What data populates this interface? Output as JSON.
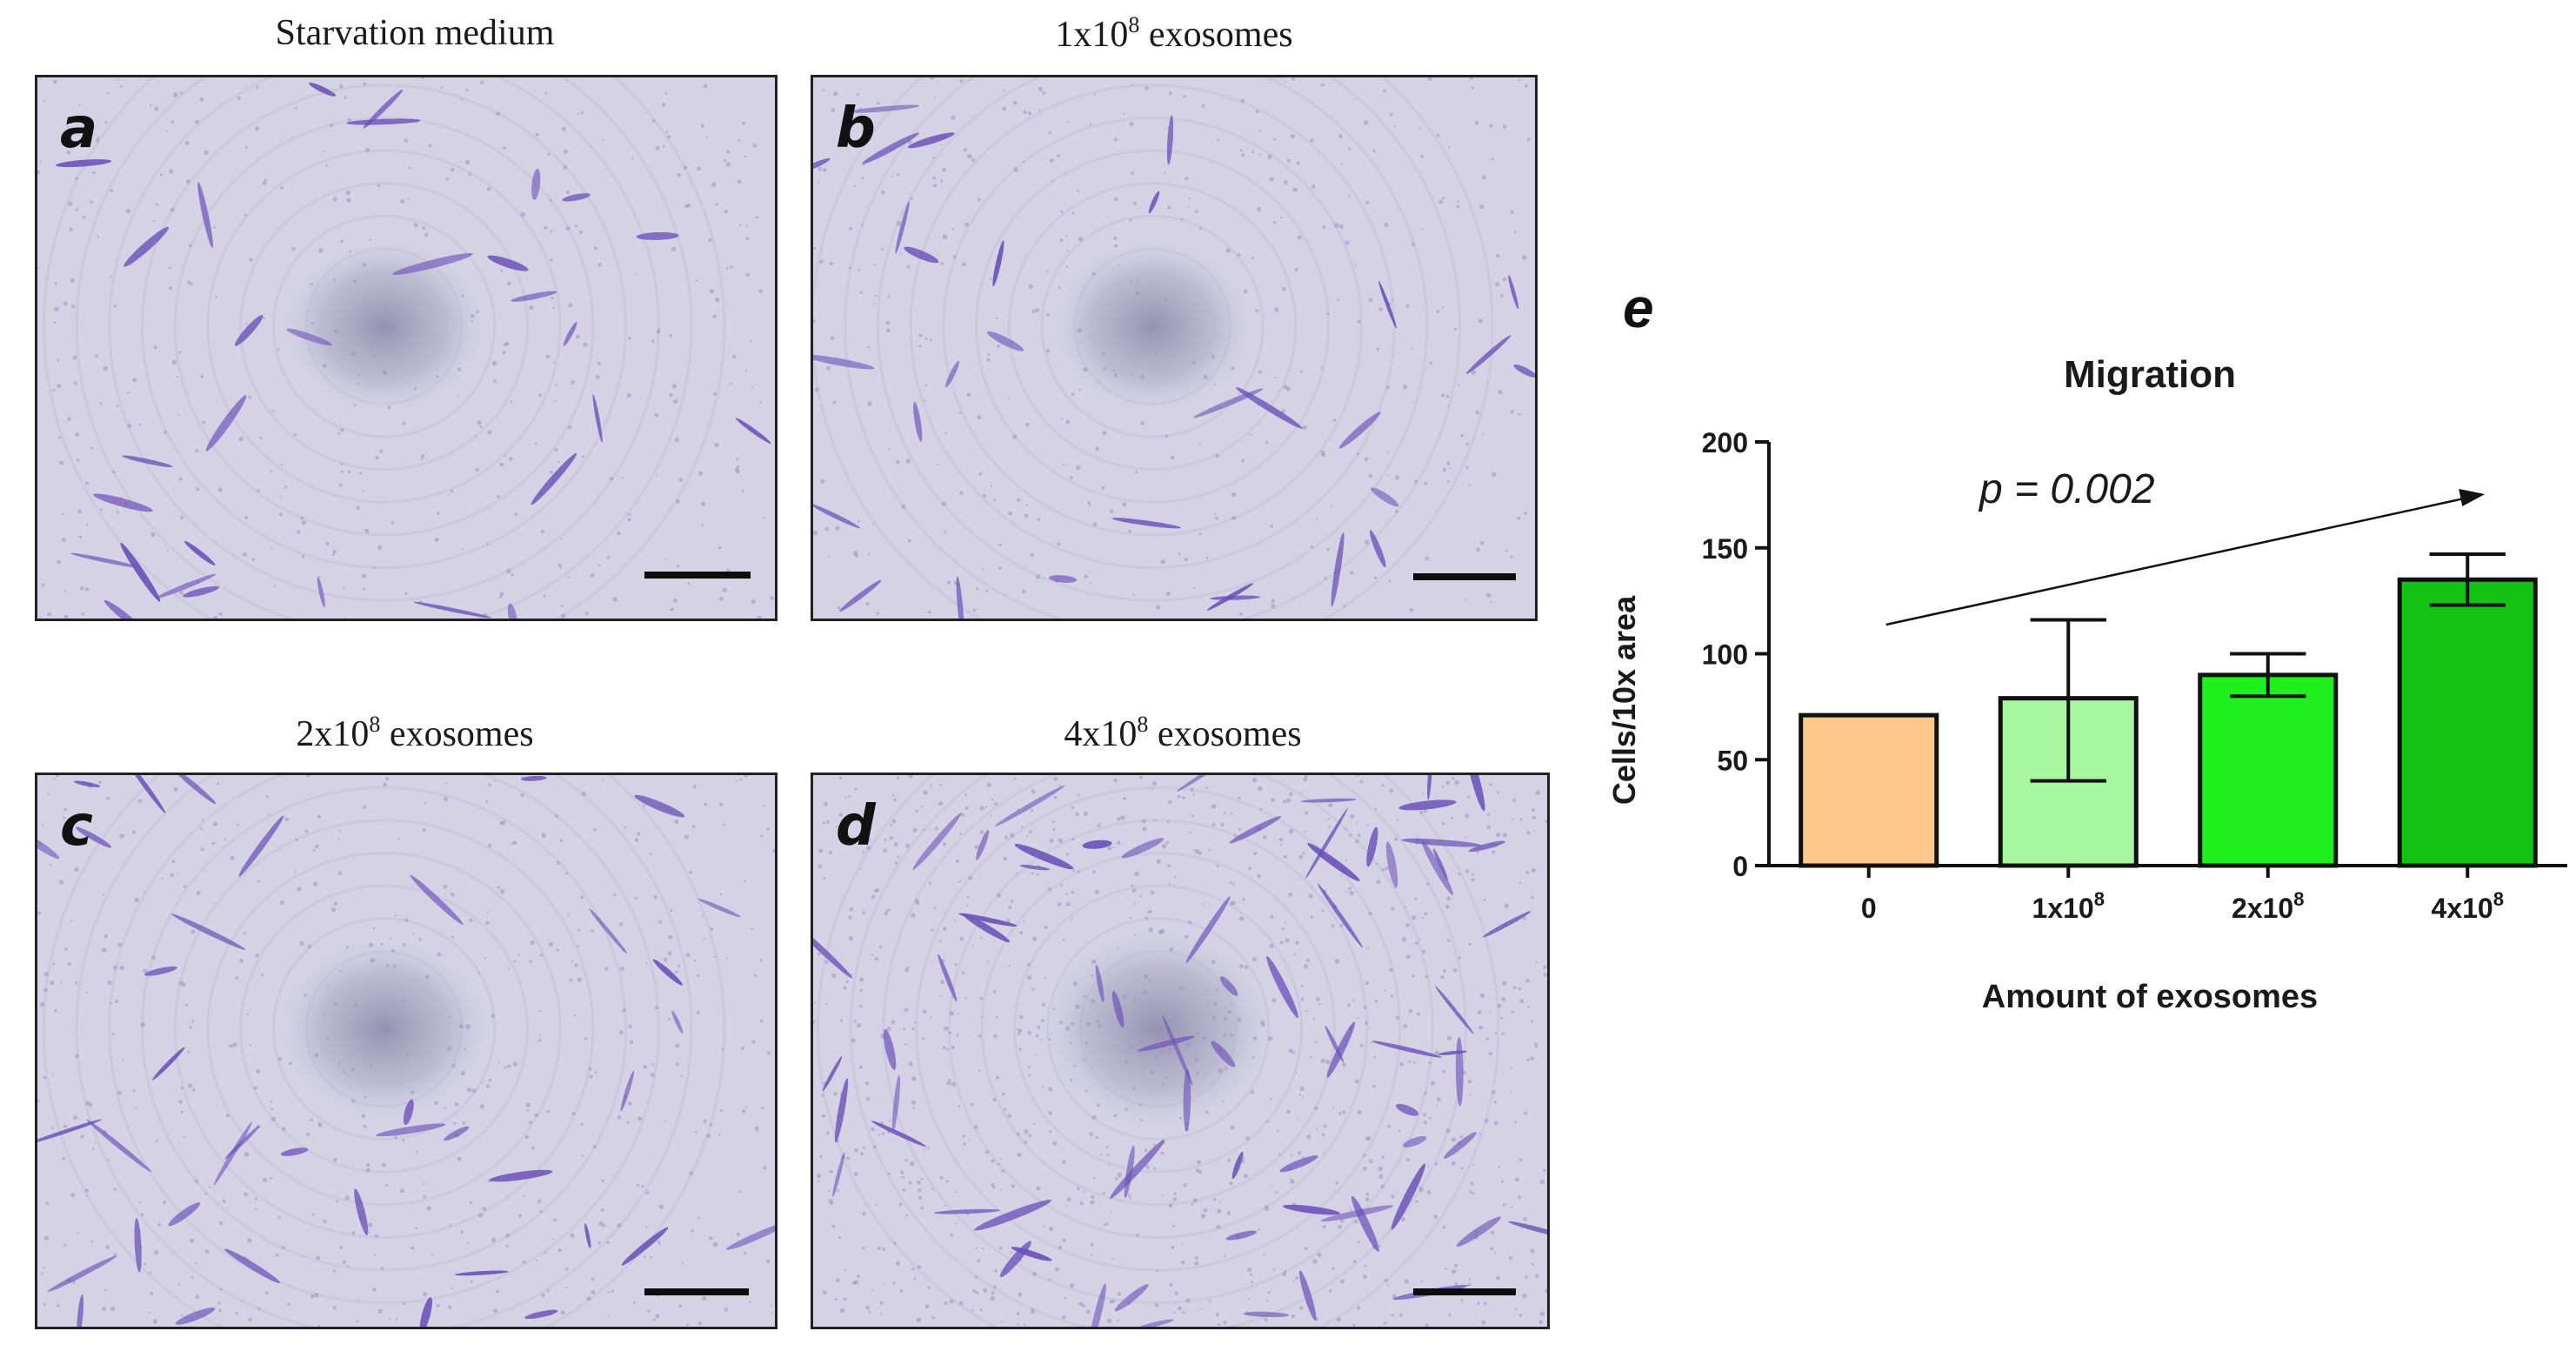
{
  "panels": [
    {
      "letter": "a",
      "title_text": "Starvation medium",
      "title_sup": "",
      "title_suffix": ""
    },
    {
      "letter": "b",
      "title_text": "1x10",
      "title_sup": "8",
      "title_suffix": " exosomes"
    },
    {
      "letter": "c",
      "title_text": "2x10",
      "title_sup": "8",
      "title_suffix": " exosomes"
    },
    {
      "letter": "d",
      "title_text": "4x10",
      "title_sup": "8",
      "title_suffix": " exosomes"
    }
  ],
  "chart_panel_letter": "e",
  "colors": {
    "micro_background": "#d4d2e4",
    "cell_stain": "#6a4fb8",
    "bar_0": "#fdc88a",
    "bar_1": "#a6f7a0",
    "bar_2": "#1ef01e",
    "bar_3": "#14c214"
  },
  "chart_data": {
    "type": "bar",
    "title": "Migration",
    "xlabel": "Amount of exosomes",
    "ylabel": "Cells/10x area",
    "categories": [
      {
        "base": "0",
        "sup": ""
      },
      {
        "base": "1x10",
        "sup": "8"
      },
      {
        "base": "2x10",
        "sup": "8"
      },
      {
        "base": "4x10",
        "sup": "8"
      }
    ],
    "values": [
      71,
      79,
      90,
      135
    ],
    "error_low": [
      71,
      40,
      80,
      123
    ],
    "error_high": [
      71,
      116,
      100,
      147
    ],
    "ylim": [
      0,
      200
    ],
    "yticks": [
      0,
      50,
      100,
      150,
      200
    ],
    "annotation": "p = 0.002",
    "trend_arrow": "increasing",
    "grid": false,
    "legend": "none"
  }
}
